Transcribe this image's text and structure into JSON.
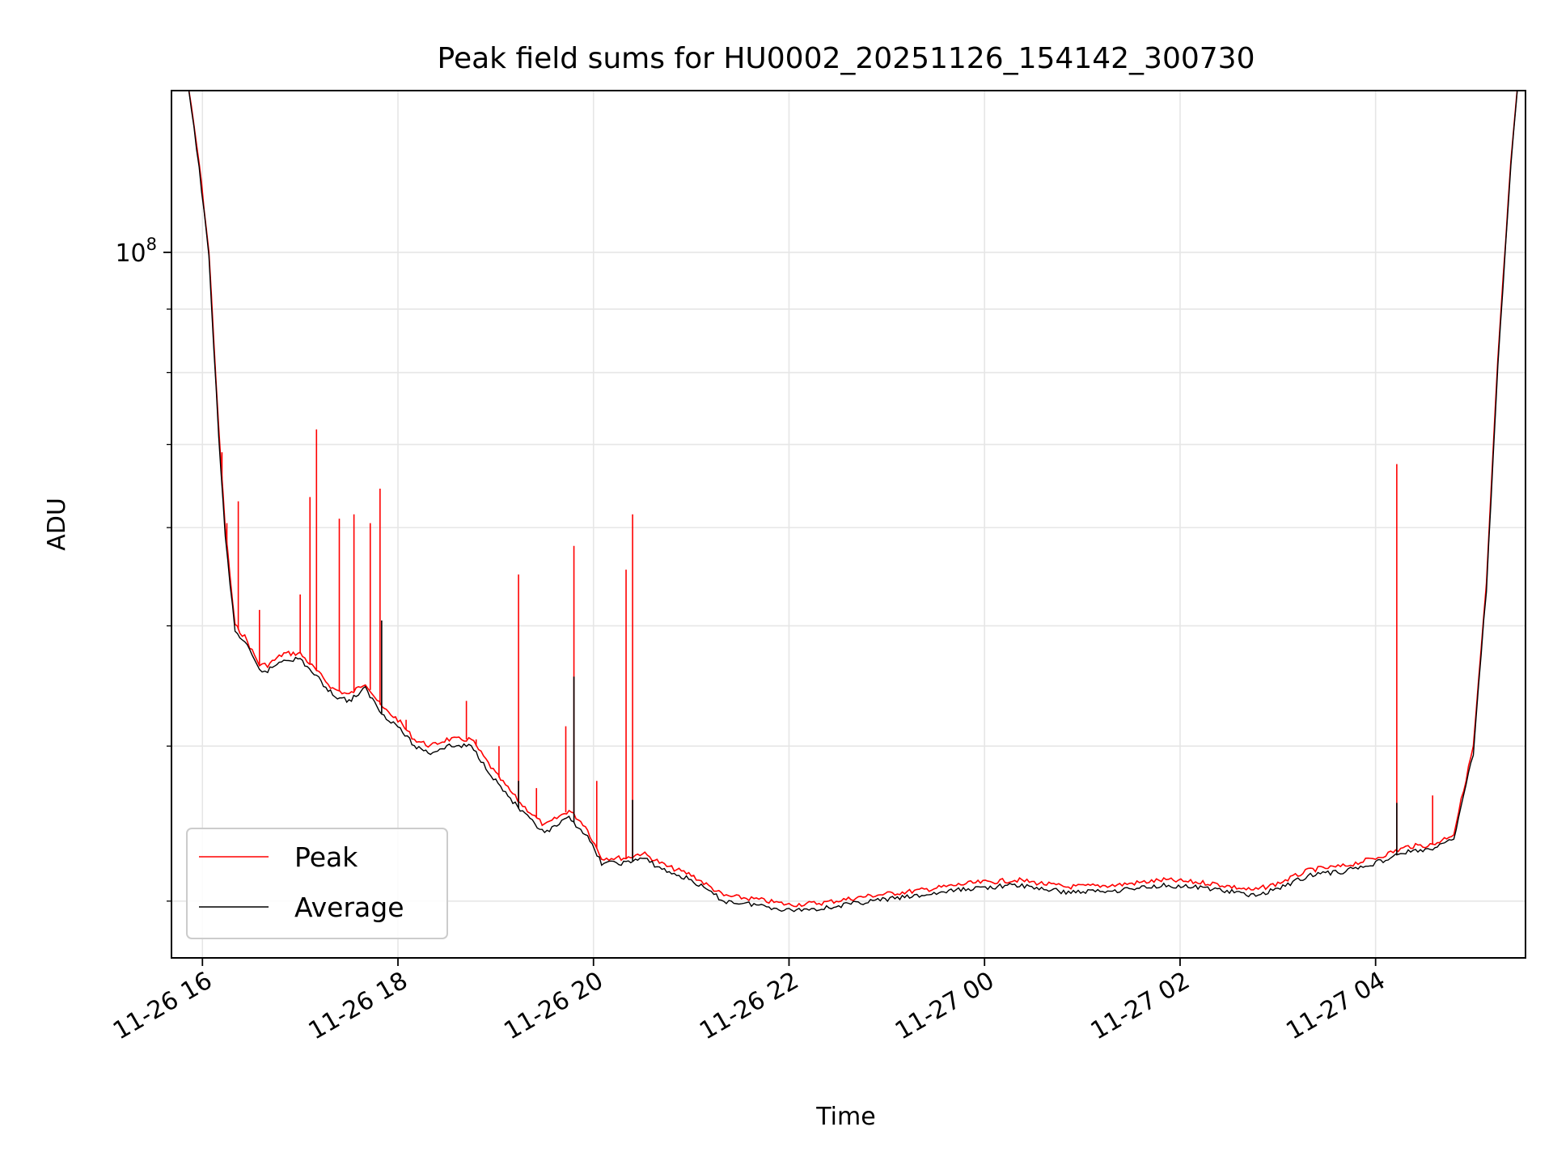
{
  "chart_data": {
    "type": "line",
    "title": "Peak field sums for HU0002_20251126_154142_300730",
    "xlabel": "Time",
    "ylabel": "ADU",
    "y_scale": "log",
    "ylim": [
      27000000,
      135000000
    ],
    "xlim": [
      "2025-11-26 15:41",
      "2025-11-27 05:32"
    ],
    "x_tick_labels": [
      "11-26 16",
      "11-26 18",
      "11-26 20",
      "11-26 22",
      "11-27 00",
      "11-27 02",
      "11-27 04"
    ],
    "x_tick_times": [
      "2025-11-26 16:00",
      "2025-11-26 18:00",
      "2025-11-26 20:00",
      "2025-11-26 22:00",
      "2025-11-27 00:00",
      "2025-11-27 02:00",
      "2025-11-27 04:00"
    ],
    "y_major_tick_label": "10",
    "y_major_tick_exponent": "8",
    "y_major_tick_value": 100000000,
    "grid": true,
    "legend_position": "lower-left",
    "series": [
      {
        "name": "Peak",
        "color": "#ff0000",
        "x": [
          "2025-11-26 15:50",
          "2025-11-26 15:58",
          "2025-11-26 16:04",
          "2025-11-26 16:10",
          "2025-11-26 16:14",
          "2025-11-26 16:20",
          "2025-11-26 16:26",
          "2025-11-26 16:35",
          "2025-11-26 16:40",
          "2025-11-26 16:50",
          "2025-11-26 17:00",
          "2025-11-26 17:10",
          "2025-11-26 17:20",
          "2025-11-26 17:30",
          "2025-11-26 17:40",
          "2025-11-26 17:50",
          "2025-11-26 18:00",
          "2025-11-26 18:10",
          "2025-11-26 18:20",
          "2025-11-26 18:30",
          "2025-11-26 18:45",
          "2025-11-26 19:00",
          "2025-11-26 19:15",
          "2025-11-26 19:30",
          "2025-11-26 19:45",
          "2025-11-26 19:55",
          "2025-11-26 20:05",
          "2025-11-26 20:20",
          "2025-11-26 20:30",
          "2025-11-26 20:45",
          "2025-11-26 21:00",
          "2025-11-26 21:20",
          "2025-11-26 21:40",
          "2025-11-26 22:00",
          "2025-11-26 22:20",
          "2025-11-26 22:50",
          "2025-11-26 23:20",
          "2025-11-26 23:50",
          "2025-11-27 00:20",
          "2025-11-27 00:50",
          "2025-11-27 01:20",
          "2025-11-27 01:50",
          "2025-11-27 02:20",
          "2025-11-27 02:45",
          "2025-11-27 03:00",
          "2025-11-27 03:20",
          "2025-11-27 03:40",
          "2025-11-27 04:00",
          "2025-11-27 04:20",
          "2025-11-27 04:35",
          "2025-11-27 04:48",
          "2025-11-27 05:00",
          "2025-11-27 05:08",
          "2025-11-27 05:15",
          "2025-11-27 05:23",
          "2025-11-27 05:28"
        ],
        "y": [
          140000000,
          118000000,
          100000000,
          72000000,
          60000000,
          50000000,
          49000000,
          46500000,
          46500000,
          47500000,
          47500000,
          46000000,
          44500000,
          44000000,
          45000000,
          43000000,
          42000000,
          40500000,
          40000000,
          40500000,
          40500000,
          38000000,
          36000000,
          34500000,
          35500000,
          34500000,
          32500000,
          32500000,
          32800000,
          32000000,
          31500000,
          30300000,
          30100000,
          29800000,
          29900000,
          30300000,
          30600000,
          31000000,
          31200000,
          30800000,
          30900000,
          31200000,
          31000000,
          30600000,
          31000000,
          31800000,
          32000000,
          32500000,
          33200000,
          33300000,
          34000000,
          40000000,
          54000000,
          82000000,
          118000000,
          140000000
        ],
        "spikes": [
          {
            "x": "2025-11-26 16:12",
            "y": 69000000
          },
          {
            "x": "2025-11-26 16:15",
            "y": 60500000
          },
          {
            "x": "2025-11-26 16:22",
            "y": 63000000
          },
          {
            "x": "2025-11-26 16:35",
            "y": 51500000
          },
          {
            "x": "2025-11-26 17:00",
            "y": 53000000
          },
          {
            "x": "2025-11-26 17:06",
            "y": 63500000
          },
          {
            "x": "2025-11-26 17:10",
            "y": 72000000
          },
          {
            "x": "2025-11-26 17:24",
            "y": 61000000
          },
          {
            "x": "2025-11-26 17:33",
            "y": 61500000
          },
          {
            "x": "2025-11-26 17:43",
            "y": 60500000
          },
          {
            "x": "2025-11-26 17:49",
            "y": 64500000
          },
          {
            "x": "2025-11-26 18:05",
            "y": 42000000
          },
          {
            "x": "2025-11-26 18:42",
            "y": 43500000
          },
          {
            "x": "2025-11-26 18:48",
            "y": 40500000
          },
          {
            "x": "2025-11-26 19:02",
            "y": 40000000
          },
          {
            "x": "2025-11-26 19:14",
            "y": 55000000
          },
          {
            "x": "2025-11-26 19:25",
            "y": 37000000
          },
          {
            "x": "2025-11-26 19:43",
            "y": 41500000
          },
          {
            "x": "2025-11-26 19:48",
            "y": 58000000
          },
          {
            "x": "2025-11-26 20:02",
            "y": 37500000
          },
          {
            "x": "2025-11-26 20:20",
            "y": 55500000
          },
          {
            "x": "2025-11-26 20:24",
            "y": 61500000
          },
          {
            "x": "2025-11-27 04:13",
            "y": 67500000
          },
          {
            "x": "2025-11-27 04:35",
            "y": 36500000
          }
        ]
      },
      {
        "name": "Average",
        "color": "#000000",
        "x": [
          "2025-11-26 15:50",
          "2025-11-26 15:58",
          "2025-11-26 16:04",
          "2025-11-26 16:10",
          "2025-11-26 16:14",
          "2025-11-26 16:20",
          "2025-11-26 16:26",
          "2025-11-26 16:35",
          "2025-11-26 16:40",
          "2025-11-26 16:50",
          "2025-11-26 17:00",
          "2025-11-26 17:10",
          "2025-11-26 17:20",
          "2025-11-26 17:30",
          "2025-11-26 17:40",
          "2025-11-26 17:50",
          "2025-11-26 18:00",
          "2025-11-26 18:10",
          "2025-11-26 18:20",
          "2025-11-26 18:30",
          "2025-11-26 18:45",
          "2025-11-26 19:00",
          "2025-11-26 19:15",
          "2025-11-26 19:30",
          "2025-11-26 19:45",
          "2025-11-26 19:55",
          "2025-11-26 20:05",
          "2025-11-26 20:20",
          "2025-11-26 20:30",
          "2025-11-26 20:45",
          "2025-11-26 21:00",
          "2025-11-26 21:20",
          "2025-11-26 21:40",
          "2025-11-26 22:00",
          "2025-11-26 22:20",
          "2025-11-26 22:50",
          "2025-11-26 23:20",
          "2025-11-26 23:50",
          "2025-11-27 00:20",
          "2025-11-27 00:50",
          "2025-11-27 01:20",
          "2025-11-27 01:50",
          "2025-11-27 02:20",
          "2025-11-27 02:45",
          "2025-11-27 03:00",
          "2025-11-27 03:20",
          "2025-11-27 03:40",
          "2025-11-27 04:00",
          "2025-11-27 04:20",
          "2025-11-27 04:35",
          "2025-11-27 04:48",
          "2025-11-27 05:00",
          "2025-11-27 05:08",
          "2025-11-27 05:15",
          "2025-11-27 05:23",
          "2025-11-27 05:28"
        ],
        "y": [
          140000000,
          117000000,
          99000000,
          71000000,
          59000000,
          49500000,
          48500000,
          46000000,
          46000000,
          47000000,
          47000000,
          45500000,
          44000000,
          43500000,
          44500000,
          42500000,
          41500000,
          40000000,
          39500000,
          40000000,
          40000000,
          37500000,
          35500000,
          34000000,
          35000000,
          34000000,
          32200000,
          32200000,
          32500000,
          31700000,
          31200000,
          30000000,
          29800000,
          29500000,
          29600000,
          30000000,
          30300000,
          30700000,
          30900000,
          30500000,
          30600000,
          30900000,
          30700000,
          30300000,
          30700000,
          31500000,
          31700000,
          32200000,
          32900000,
          33000000,
          33700000,
          39500000,
          53500000,
          81000000,
          117000000,
          140000000
        ],
        "spikes": [
          {
            "x": "2025-11-26 17:50",
            "y": 50500000
          },
          {
            "x": "2025-11-26 19:48",
            "y": 45500000
          },
          {
            "x": "2025-11-26 19:14",
            "y": 37500000
          },
          {
            "x": "2025-11-26 20:24",
            "y": 36200000
          },
          {
            "x": "2025-11-27 04:13",
            "y": 36000000
          }
        ]
      }
    ]
  }
}
